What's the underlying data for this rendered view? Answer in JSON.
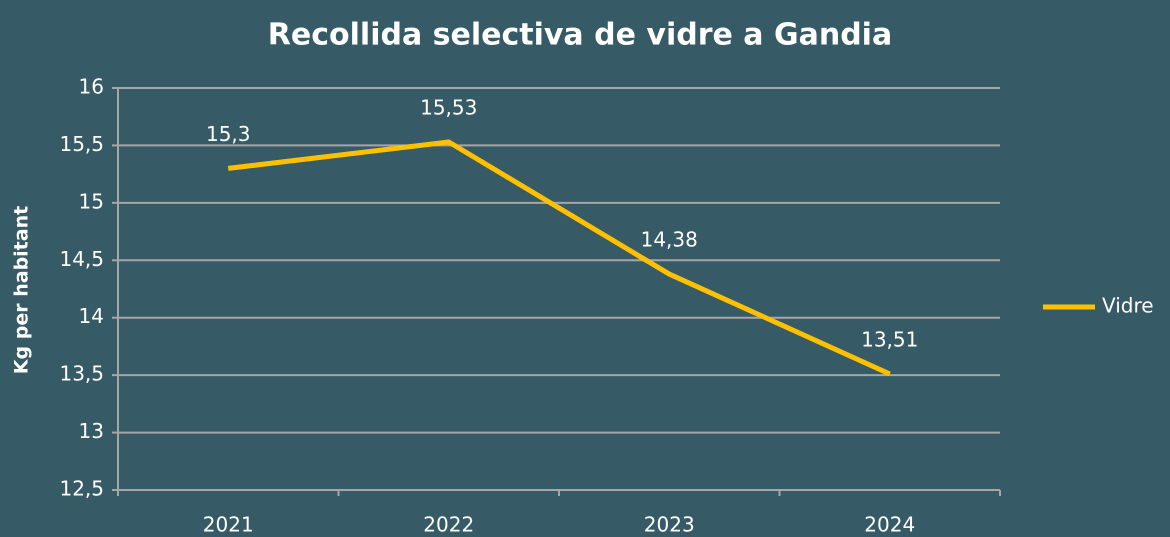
{
  "chart_data": {
    "type": "line",
    "title": "Recollida selectiva de vidre a Gandia",
    "y_label": "Kg per habitant",
    "categories": [
      "2021",
      "2022",
      "2023",
      "2024"
    ],
    "series": [
      {
        "name": "Vidre",
        "color": "#ffc000",
        "values": [
          15.3,
          15.53,
          14.38,
          13.51
        ],
        "value_labels": [
          "15,3",
          "15,53",
          "14,38",
          "13,51"
        ]
      }
    ],
    "ylim": [
      12.5,
      16
    ],
    "yticks": [
      {
        "value": 12.5,
        "label": "12,5"
      },
      13,
      {
        "value": 13.5,
        "label": "13,5"
      },
      14,
      {
        "value": 14.5,
        "label": "14,5"
      },
      15,
      {
        "value": 15.5,
        "label": "15,5"
      },
      16
    ],
    "grid": true,
    "legend": "right"
  }
}
